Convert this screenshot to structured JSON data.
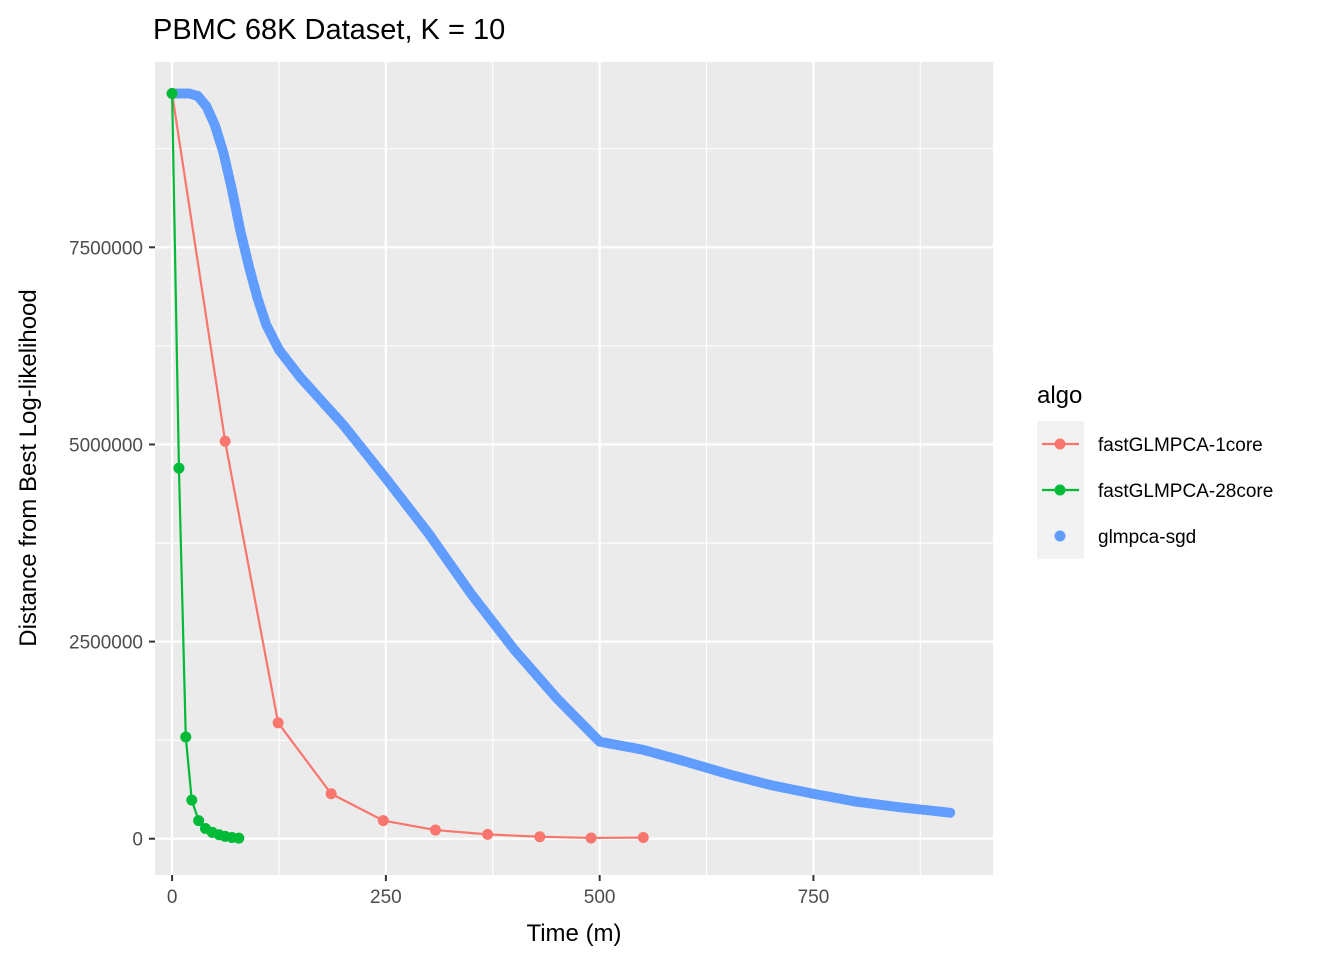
{
  "chart_data": {
    "type": "line",
    "title": "PBMC 68K Dataset, K = 10",
    "xlabel": "Time (m)",
    "ylabel": "Distance from Best Log-likelihood",
    "xlim": [
      -20,
      960
    ],
    "ylim": [
      -460000,
      9850000
    ],
    "x_ticks": [
      0,
      250,
      500,
      750
    ],
    "x_tick_labels": [
      "0",
      "250",
      "500",
      "750"
    ],
    "y_ticks": [
      0,
      2500000,
      5000000,
      7500000
    ],
    "y_tick_labels": [
      "0",
      "2500000",
      "5000000",
      "7500000"
    ],
    "grid": true,
    "legend": {
      "title": "algo",
      "position": "right"
    },
    "series": [
      {
        "name": "fastGLMPCA-1core",
        "color": "#F8766D",
        "style": "line-points",
        "x": [
          0,
          62,
          124,
          186,
          247,
          308,
          369,
          430,
          490,
          551
        ],
        "y": [
          9450000,
          5040000,
          1470000,
          570000,
          230000,
          110000,
          55000,
          25000,
          10000,
          15000
        ]
      },
      {
        "name": "fastGLMPCA-28core",
        "color": "#00BA38",
        "style": "line-points",
        "x": [
          0,
          8,
          16,
          23,
          31,
          39,
          47,
          55,
          62,
          70,
          78
        ],
        "y": [
          9450000,
          4700000,
          1290000,
          490000,
          230000,
          130000,
          80000,
          50000,
          30000,
          15000,
          8000
        ]
      },
      {
        "name": "glmpca-sgd",
        "color": "#619CFF",
        "style": "points",
        "x": [
          0,
          20,
          30,
          40,
          50,
          60,
          70,
          80,
          90,
          100,
          110,
          125,
          150,
          200,
          250,
          300,
          350,
          400,
          450,
          500,
          550,
          600,
          650,
          700,
          750,
          800,
          850,
          910
        ],
        "y": [
          9450000,
          9450000,
          9420000,
          9290000,
          9050000,
          8700000,
          8230000,
          7700000,
          7250000,
          6850000,
          6520000,
          6200000,
          5850000,
          5250000,
          4570000,
          3870000,
          3100000,
          2400000,
          1780000,
          1230000,
          1130000,
          980000,
          820000,
          680000,
          570000,
          470000,
          400000,
          330000
        ]
      }
    ]
  }
}
